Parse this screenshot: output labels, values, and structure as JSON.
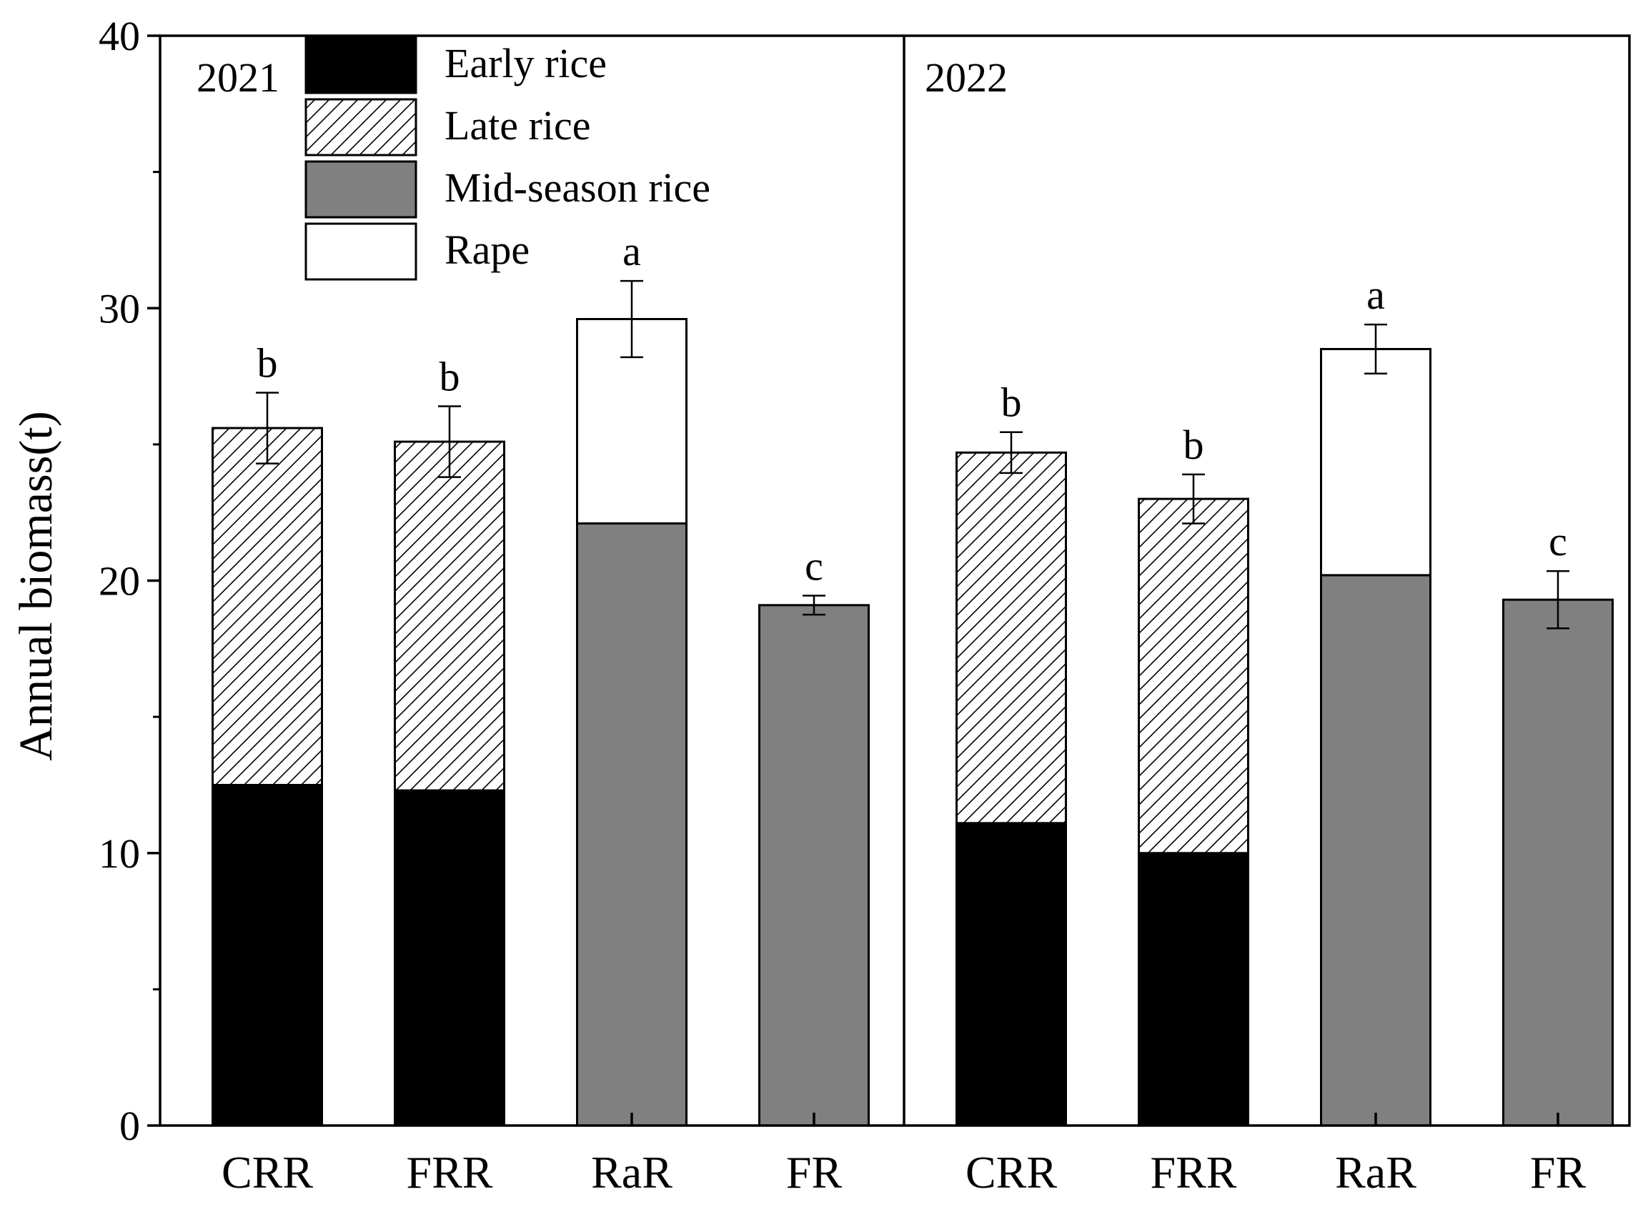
{
  "chart_data": {
    "type": "bar",
    "stacked": true,
    "ylabel": "Annual biomass(t)",
    "ylim": [
      0,
      40
    ],
    "yticks": [
      "0",
      "10",
      "20",
      "30",
      "40"
    ],
    "categories": [
      "CRR",
      "FRR",
      "RaR",
      "FR"
    ],
    "legend": [
      {
        "name": "Early rice",
        "fill": "#000000",
        "hatch": false
      },
      {
        "name": "Late rice",
        "fill": "#ffffff",
        "hatch": true
      },
      {
        "name": "Mid-season rice",
        "fill": "#808080",
        "hatch": false
      },
      {
        "name": "Rape",
        "fill": "#ffffff",
        "hatch": false
      }
    ],
    "panels": [
      {
        "year": "2021",
        "bars": [
          {
            "category": "CRR",
            "segments": [
              {
                "series": "Early rice",
                "value": 12.5
              },
              {
                "series": "Late rice",
                "value": 13.1
              }
            ],
            "total": 25.6,
            "error": 1.3,
            "letter": "b"
          },
          {
            "category": "FRR",
            "segments": [
              {
                "series": "Early rice",
                "value": 12.3
              },
              {
                "series": "Late rice",
                "value": 12.8
              }
            ],
            "total": 25.1,
            "error": 1.3,
            "letter": "b"
          },
          {
            "category": "RaR",
            "segments": [
              {
                "series": "Mid-season rice",
                "value": 22.1
              },
              {
                "series": "Rape",
                "value": 7.5
              }
            ],
            "total": 29.6,
            "error": 1.4,
            "letter": "a"
          },
          {
            "category": "FR",
            "segments": [
              {
                "series": "Mid-season rice",
                "value": 19.1
              }
            ],
            "total": 19.1,
            "error": 0.35,
            "letter": "c"
          }
        ]
      },
      {
        "year": "2022",
        "bars": [
          {
            "category": "CRR",
            "segments": [
              {
                "series": "Early rice",
                "value": 11.1
              },
              {
                "series": "Late rice",
                "value": 13.6
              }
            ],
            "total": 24.7,
            "error": 0.75,
            "letter": "b"
          },
          {
            "category": "FRR",
            "segments": [
              {
                "series": "Early rice",
                "value": 10.0
              },
              {
                "series": "Late rice",
                "value": 13.0
              }
            ],
            "total": 23.0,
            "error": 0.9,
            "letter": "b"
          },
          {
            "category": "RaR",
            "segments": [
              {
                "series": "Mid-season rice",
                "value": 20.2
              },
              {
                "series": "Rape",
                "value": 8.3
              }
            ],
            "total": 28.5,
            "error": 0.9,
            "letter": "a"
          },
          {
            "category": "FR",
            "segments": [
              {
                "series": "Mid-season rice",
                "value": 19.3
              }
            ],
            "total": 19.3,
            "error": 1.05,
            "letter": "c"
          }
        ]
      }
    ]
  }
}
